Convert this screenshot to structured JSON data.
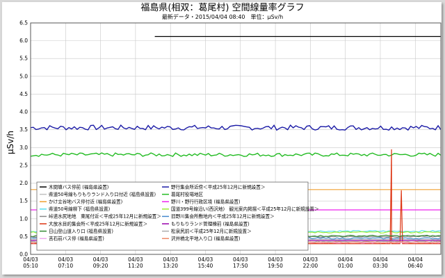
{
  "chart_data": {
    "type": "line",
    "title": "福島県(相双：葛尾村) 空間線量率グラフ",
    "subtitle": "最新データ・2015/04/04 08:40　単位：μSv/h",
    "ylabel": "μSv/h",
    "xlabel": "",
    "ylim": [
      0,
      6.5
    ],
    "grid": true,
    "yticks": [
      "0.0",
      "0.5",
      "1.0",
      "1.5",
      "2.0",
      "2.5",
      "3.0",
      "3.5",
      "4.0",
      "4.5",
      "5.0",
      "5.5",
      "6.0",
      "6.5"
    ],
    "xticks": [
      {
        "date": "04/03",
        "time": "05:10"
      },
      {
        "date": "04/03",
        "time": "07:10"
      },
      {
        "date": "04/03",
        "time": "09:20"
      },
      {
        "date": "04/03",
        "time": "11:20"
      },
      {
        "date": "04/03",
        "time": "13:20"
      },
      {
        "date": "04/03",
        "time": "15:40"
      },
      {
        "date": "04/03",
        "time": "17:50"
      },
      {
        "date": "04/03",
        "time": "19:50"
      },
      {
        "date": "04/03",
        "time": "22:00"
      },
      {
        "date": "04/04",
        "time": "01:00"
      },
      {
        "date": "04/04",
        "time": "03:30"
      },
      {
        "date": "04/04",
        "time": "06:40"
      }
    ],
    "legend_position": "bottom-left",
    "series": [
      {
        "name": "木間塘バス停前 (福島県設置)",
        "color": "#000000",
        "style": "flat",
        "start_tick": 3.55,
        "value": 6.12
      },
      {
        "name": "野行集会所近傍＜平成25年12月に新規設置＞",
        "color": "#1a1aa6",
        "style": "noisy",
        "value": 3.56,
        "noise": 0.07
      },
      {
        "name": "県道50号線もりもりランド入り口付近 (福島県設置)",
        "color": "#c0c0c0",
        "style": "flat",
        "value": 0.42
      },
      {
        "name": "葛尾村役場地区",
        "color": "#22bb22",
        "style": "noisy",
        "value": 2.8,
        "noise": 0.05
      },
      {
        "name": "かけ立谷地バス停付近 (福島県設置)",
        "color": "#f0a030",
        "style": "flat",
        "value": 1.82
      },
      {
        "name": "野川・野行行政区境 (福島県設置)",
        "color": "#ee22ee",
        "style": "flat",
        "value": 1.25
      },
      {
        "name": "県道50号線柳下 (福島県設置)",
        "color": "#55ddee",
        "style": "noisy",
        "value": 0.65,
        "noise": 0.02
      },
      {
        "name": "国道399号線沿い(西沢地)　観光案内掲揚＜平成25年12月に新規設置＞",
        "color": "#99ee33",
        "style": "noisy",
        "value": 0.62,
        "noise": 0.02
      },
      {
        "name": "峠道水尻地地　東尾付近＜平成25年12月に新規設置＞",
        "color": "#888888",
        "style": "noisy",
        "value": 0.5,
        "noise": 0.02
      },
      {
        "name": "旧野川集会所敷地内＜平成25年12月に新規設置＞",
        "color": "#4488cc",
        "style": "noisy",
        "value": 0.45,
        "noise": 0.02
      },
      {
        "name": "大放水目的集会所＜平成25年12月に新規設置＞",
        "color": "#dd3311",
        "style": "spike",
        "value": 0.3,
        "peaks": [
          {
            "tick": 10.32,
            "value": 2.95
          },
          {
            "tick": 10.6,
            "value": 1.8
          }
        ]
      },
      {
        "name": "もりもりランド管理棟前 (福島県設置)",
        "color": "#9900aa",
        "style": "flat",
        "value": 0.39
      },
      {
        "name": "日山登山道入り口 (福島県設置)",
        "color": "#338833",
        "style": "noisy",
        "value": 0.52,
        "noise": 0.02
      },
      {
        "name": "松泉尻前＜平成25年12月に新規設置＞",
        "color": "#aaaaaa",
        "style": "noisy",
        "value": 0.36,
        "noise": 0.015
      },
      {
        "name": "吉石前バス停 (福島県設置)",
        "color": "#eeaaee",
        "style": "noisy",
        "value": 0.33,
        "noise": 0.015
      },
      {
        "name": "沢井橋北平地入り口 (福島県設置)",
        "color": "#ee8866",
        "style": "noisy",
        "value": 0.34,
        "noise": 0.015
      }
    ]
  }
}
